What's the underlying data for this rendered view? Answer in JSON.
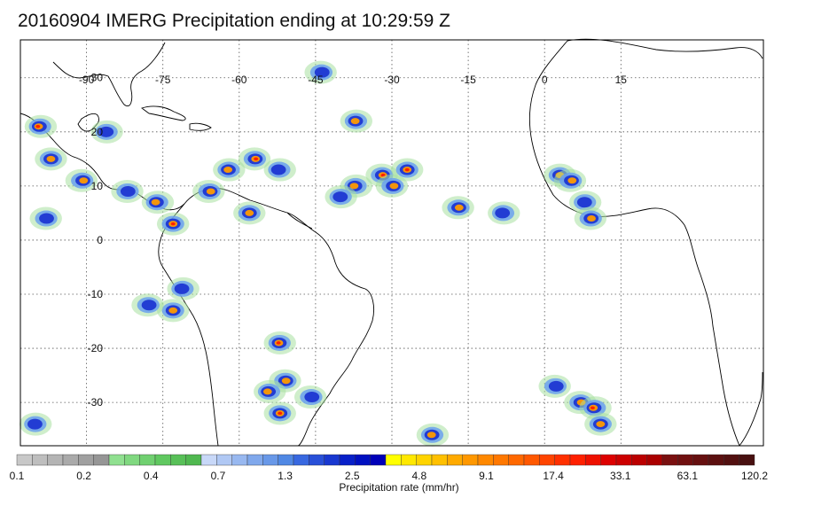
{
  "title": "20160904 IMERG Precipitation ending at 10:29:59 Z",
  "map": {
    "projection": "cylindrical equidistant",
    "lon_range": [
      -103,
      43
    ],
    "lat_range": [
      -38,
      37
    ],
    "longitude_labels": [
      "-90",
      "-75",
      "-60",
      "-45",
      "-30",
      "-15",
      "0",
      "15"
    ],
    "longitude_values": [
      -90,
      -75,
      -60,
      -45,
      -30,
      -15,
      0,
      15
    ],
    "latitude_labels": [
      "30",
      "20",
      "10",
      "0",
      "-10",
      "-20",
      "-30"
    ],
    "latitude_values": [
      30,
      20,
      10,
      0,
      -10,
      -20,
      -30
    ],
    "gridlines": "dotted",
    "coastline_color": "#000000"
  },
  "colorbar": {
    "caption": "Precipitation rate (mm/hr)",
    "tick_labels": [
      "0.1",
      "0.2",
      "0.4",
      "0.7",
      "1.3",
      "2.5",
      "4.8",
      "9.1",
      "17.4",
      "33.1",
      "63.1",
      "120.2"
    ],
    "colors": [
      "#c8c8c8",
      "#bebebe",
      "#b4b4b4",
      "#aaaaaa",
      "#a0a0a0",
      "#969696",
      "#90e090",
      "#80d880",
      "#70d070",
      "#60c860",
      "#58c058",
      "#50b850",
      "#c8d8f8",
      "#b0c8f4",
      "#98b8f0",
      "#80a8ec",
      "#6898e8",
      "#5088e4",
      "#3868e0",
      "#2850d8",
      "#1838d0",
      "#0820c8",
      "#0010c0",
      "#0000b8",
      "#ffff00",
      "#ffe800",
      "#ffd400",
      "#ffc000",
      "#ffaa00",
      "#ff9800",
      "#ff8800",
      "#ff7800",
      "#ff6800",
      "#ff5800",
      "#ff4400",
      "#ff3000",
      "#ff2000",
      "#ee1000",
      "#dd0000",
      "#cc0000",
      "#bb0000",
      "#aa0000",
      "#7a1010",
      "#701010",
      "#661010",
      "#5c1010",
      "#521010",
      "#481010"
    ]
  },
  "precipitation_cells": [
    {
      "lon": -99,
      "lat": 21,
      "intensity": 4
    },
    {
      "lon": -97,
      "lat": 15,
      "intensity": 3
    },
    {
      "lon": -91,
      "lat": 11,
      "intensity": 3
    },
    {
      "lon": -86,
      "lat": 20,
      "intensity": 2
    },
    {
      "lon": -82,
      "lat": 9,
      "intensity": 2
    },
    {
      "lon": -76,
      "lat": 7,
      "intensity": 3
    },
    {
      "lon": -73,
      "lat": 3,
      "intensity": 4
    },
    {
      "lon": -66,
      "lat": 9,
      "intensity": 3
    },
    {
      "lon": -62,
      "lat": 13,
      "intensity": 3
    },
    {
      "lon": -57,
      "lat": 15,
      "intensity": 4
    },
    {
      "lon": -52,
      "lat": 13,
      "intensity": 2
    },
    {
      "lon": -58,
      "lat": 5,
      "intensity": 3
    },
    {
      "lon": -44,
      "lat": 31,
      "intensity": 2
    },
    {
      "lon": -37,
      "lat": 22,
      "intensity": 3
    },
    {
      "lon": -32,
      "lat": 12,
      "intensity": 4
    },
    {
      "lon": -37,
      "lat": 10,
      "intensity": 3
    },
    {
      "lon": -27,
      "lat": 13,
      "intensity": 4
    },
    {
      "lon": -30,
      "lat": 10,
      "intensity": 3
    },
    {
      "lon": -40,
      "lat": 8,
      "intensity": 2
    },
    {
      "lon": -17,
      "lat": 6,
      "intensity": 3
    },
    {
      "lon": -8,
      "lat": 5,
      "intensity": 2
    },
    {
      "lon": 3,
      "lat": 12,
      "intensity": 3
    },
    {
      "lon": 5,
      "lat": 11,
      "intensity": 3
    },
    {
      "lon": 8,
      "lat": 7,
      "intensity": 2
    },
    {
      "lon": 9,
      "lat": 4,
      "intensity": 3
    },
    {
      "lon": -71,
      "lat": -9,
      "intensity": 2
    },
    {
      "lon": -73,
      "lat": -13,
      "intensity": 3
    },
    {
      "lon": -78,
      "lat": -12,
      "intensity": 2
    },
    {
      "lon": -52,
      "lat": -19,
      "intensity": 4
    },
    {
      "lon": -51,
      "lat": -26,
      "intensity": 3
    },
    {
      "lon": -54,
      "lat": -28,
      "intensity": 3
    },
    {
      "lon": -52,
      "lat": -32,
      "intensity": 4
    },
    {
      "lon": -46,
      "lat": -29,
      "intensity": 2
    },
    {
      "lon": -22,
      "lat": -36,
      "intensity": 3
    },
    {
      "lon": 7,
      "lat": -30,
      "intensity": 3
    },
    {
      "lon": 10,
      "lat": -31,
      "intensity": 4
    },
    {
      "lon": 11,
      "lat": -34,
      "intensity": 3
    },
    {
      "lon": 2,
      "lat": -27,
      "intensity": 2
    },
    {
      "lon": -100,
      "lat": -34,
      "intensity": 2
    },
    {
      "lon": -98,
      "lat": 4,
      "intensity": 2
    }
  ]
}
